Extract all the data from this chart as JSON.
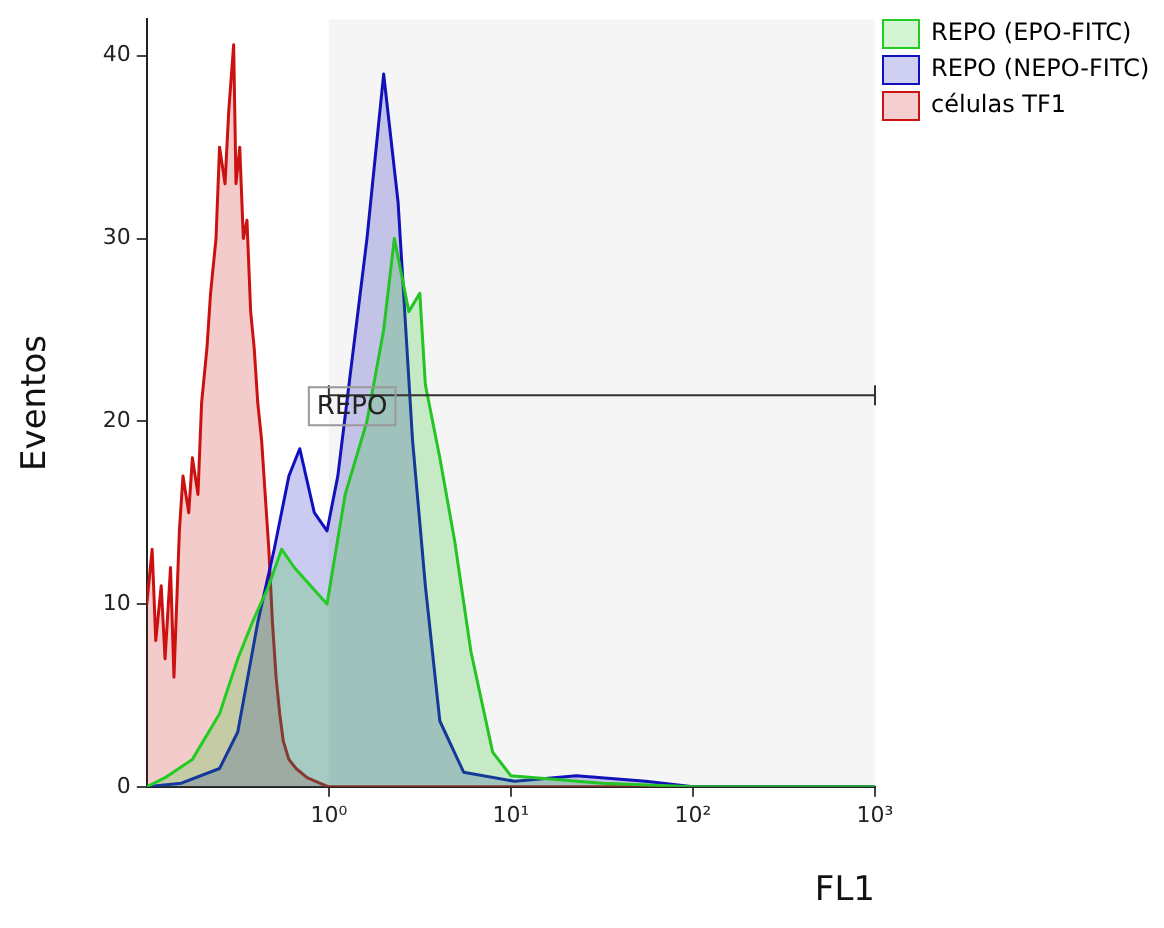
{
  "chart_data": {
    "type": "area",
    "xlabel": "FL1",
    "ylabel": "Eventos",
    "log": "x",
    "xlim": [
      0.1,
      1000
    ],
    "ylim": [
      0,
      42
    ],
    "xticks": [
      {
        "value": 1,
        "label": "10⁰"
      },
      {
        "value": 10,
        "label": "10¹"
      },
      {
        "value": 100,
        "label": "10²"
      },
      {
        "value": 1000,
        "label": "10³"
      }
    ],
    "yticks": [
      0,
      10,
      20,
      30,
      40
    ],
    "grid": false,
    "legend": "top right",
    "line_style": "solid",
    "marker": "none",
    "bands": [
      {
        "axis": "x",
        "from": 1,
        "to": 1000,
        "label": "REPO",
        "color": "#333333"
      }
    ],
    "series": [
      {
        "name": "REPO (EPO-FITC)",
        "color": "#22cc22",
        "x": [
          0.1,
          0.126,
          0.178,
          0.251,
          0.316,
          0.38,
          0.468,
          0.55,
          0.646,
          0.794,
          0.977,
          1.23,
          1.62,
          2,
          2.29,
          2.75,
          3.16,
          3.39,
          4.07,
          4.9,
          6.03,
          7.94,
          10,
          31.6,
          100,
          1000
        ],
        "values": [
          0,
          0.5,
          1.5,
          4,
          7,
          9,
          11,
          13,
          12,
          11,
          10,
          16,
          20,
          25,
          30,
          26,
          27,
          22,
          18,
          13.5,
          7.4,
          1.9,
          0.6,
          0.2,
          0,
          0
        ]
      },
      {
        "name": "REPO (NEPO-FITC)",
        "color": "#1010c0",
        "x": [
          0.1,
          0.155,
          0.251,
          0.316,
          0.407,
          0.501,
          0.603,
          0.692,
          0.832,
          0.977,
          1.12,
          1.29,
          1.62,
          2,
          2.4,
          2.88,
          3.39,
          4.07,
          5.5,
          10.5,
          22.9,
          55,
          100,
          1000
        ],
        "values": [
          0,
          0.2,
          1,
          3,
          9,
          13,
          17,
          18.5,
          15,
          14,
          17,
          22,
          30,
          39,
          32,
          19,
          11,
          3.6,
          0.8,
          0.3,
          0.6,
          0.3,
          0,
          0
        ]
      },
      {
        "name": "células TF1",
        "color": "#cc1111",
        "x": [
          0.1,
          0.107,
          0.112,
          0.12,
          0.126,
          0.135,
          0.141,
          0.151,
          0.158,
          0.17,
          0.178,
          0.191,
          0.2,
          0.214,
          0.224,
          0.24,
          0.251,
          0.269,
          0.282,
          0.3,
          0.309,
          0.324,
          0.339,
          0.355,
          0.372,
          0.389,
          0.407,
          0.427,
          0.447,
          0.468,
          0.49,
          0.513,
          0.537,
          0.562,
          0.603,
          0.661,
          0.759,
          0.891,
          1,
          1000
        ],
        "values": [
          10,
          13,
          8,
          11,
          7,
          12,
          6,
          14,
          17,
          15,
          18,
          16,
          21,
          24,
          27,
          30,
          35,
          33,
          37,
          40.6,
          33,
          35,
          30,
          31,
          26,
          24,
          21,
          19,
          16,
          13,
          9,
          6,
          4,
          2.5,
          1.5,
          1,
          0.5,
          0.2,
          0,
          0
        ]
      }
    ]
  }
}
